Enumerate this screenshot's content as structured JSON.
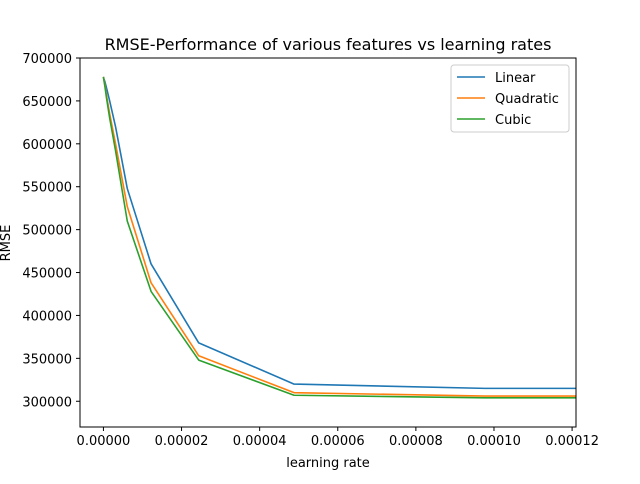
{
  "chart_data": {
    "type": "line",
    "title": "RMSE-Performance of various features vs learning rates",
    "xlabel": "learning rate",
    "ylabel": "RMSE",
    "xlim": [
      -6e-06,
      0.000121
    ],
    "ylim": [
      270000,
      700000
    ],
    "xticks": [
      0.0,
      2e-05,
      4e-05,
      6e-05,
      8e-05,
      0.0001,
      0.00012
    ],
    "xtick_labels": [
      "0.00000",
      "0.00002",
      "0.00004",
      "0.00006",
      "0.00008",
      "0.00010",
      "0.00012"
    ],
    "yticks": [
      300000,
      350000,
      400000,
      450000,
      500000,
      550000,
      600000,
      650000,
      700000
    ],
    "ytick_labels": [
      "300000",
      "350000",
      "400000",
      "450000",
      "500000",
      "550000",
      "600000",
      "650000",
      "700000"
    ],
    "legend_position": "top-right",
    "grid": false,
    "x": [
      0.0,
      1e-07,
      4e-07,
      8e-07,
      1.6e-06,
      3.1e-06,
      6.1e-06,
      1.22e-05,
      2.44e-05,
      4.88e-05,
      9.77e-05,
      0.000121
    ],
    "series": [
      {
        "name": "Linear",
        "color": "#1f77b4",
        "values": [
          678000,
          676000,
          672000,
          665000,
          650000,
          620000,
          548000,
          460000,
          368000,
          320000,
          315000,
          315000
        ]
      },
      {
        "name": "Quadratic",
        "color": "#ff7f0e",
        "values": [
          678000,
          675000,
          668000,
          656000,
          635000,
          600000,
          527000,
          438000,
          353000,
          310000,
          306000,
          306000
        ]
      },
      {
        "name": "Cubic",
        "color": "#2ca02c",
        "values": [
          678000,
          675000,
          666000,
          653000,
          630000,
          592000,
          510000,
          428000,
          348000,
          307000,
          304000,
          304000
        ]
      }
    ]
  }
}
